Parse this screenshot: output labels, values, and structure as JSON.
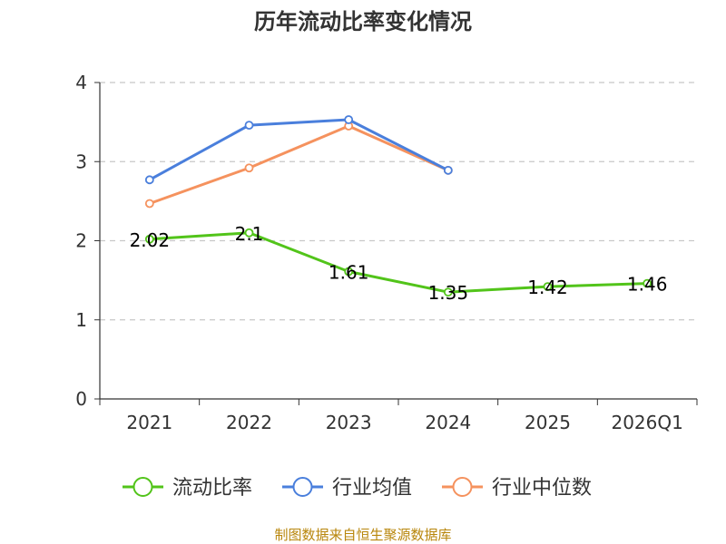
{
  "chart_data": {
    "type": "line",
    "title": "历年流动比率变化情况",
    "categories": [
      "2021",
      "2022",
      "2023",
      "2024",
      "2025",
      "2026Q1"
    ],
    "ylim": [
      0,
      4
    ],
    "yticks": [
      "0",
      "1",
      "2",
      "3",
      "4"
    ],
    "grid": true,
    "legend_position": "bottom",
    "series": [
      {
        "name": "流动比率",
        "color": "#52c41a",
        "values": [
          2.02,
          2.1,
          1.61,
          1.35,
          1.42,
          1.46
        ],
        "labels": [
          "2.02",
          "2.1",
          "1.61",
          "1.35",
          "1.42",
          "1.46"
        ]
      },
      {
        "name": "行业均值",
        "color": "#4a7fdc",
        "values": [
          2.77,
          3.46,
          3.53,
          2.89,
          null,
          null
        ]
      },
      {
        "name": "行业中位数",
        "color": "#f5925e",
        "values": [
          2.47,
          2.92,
          3.45,
          2.89,
          null,
          null
        ]
      }
    ],
    "source": "制图数据来自恒生聚源数据库"
  }
}
